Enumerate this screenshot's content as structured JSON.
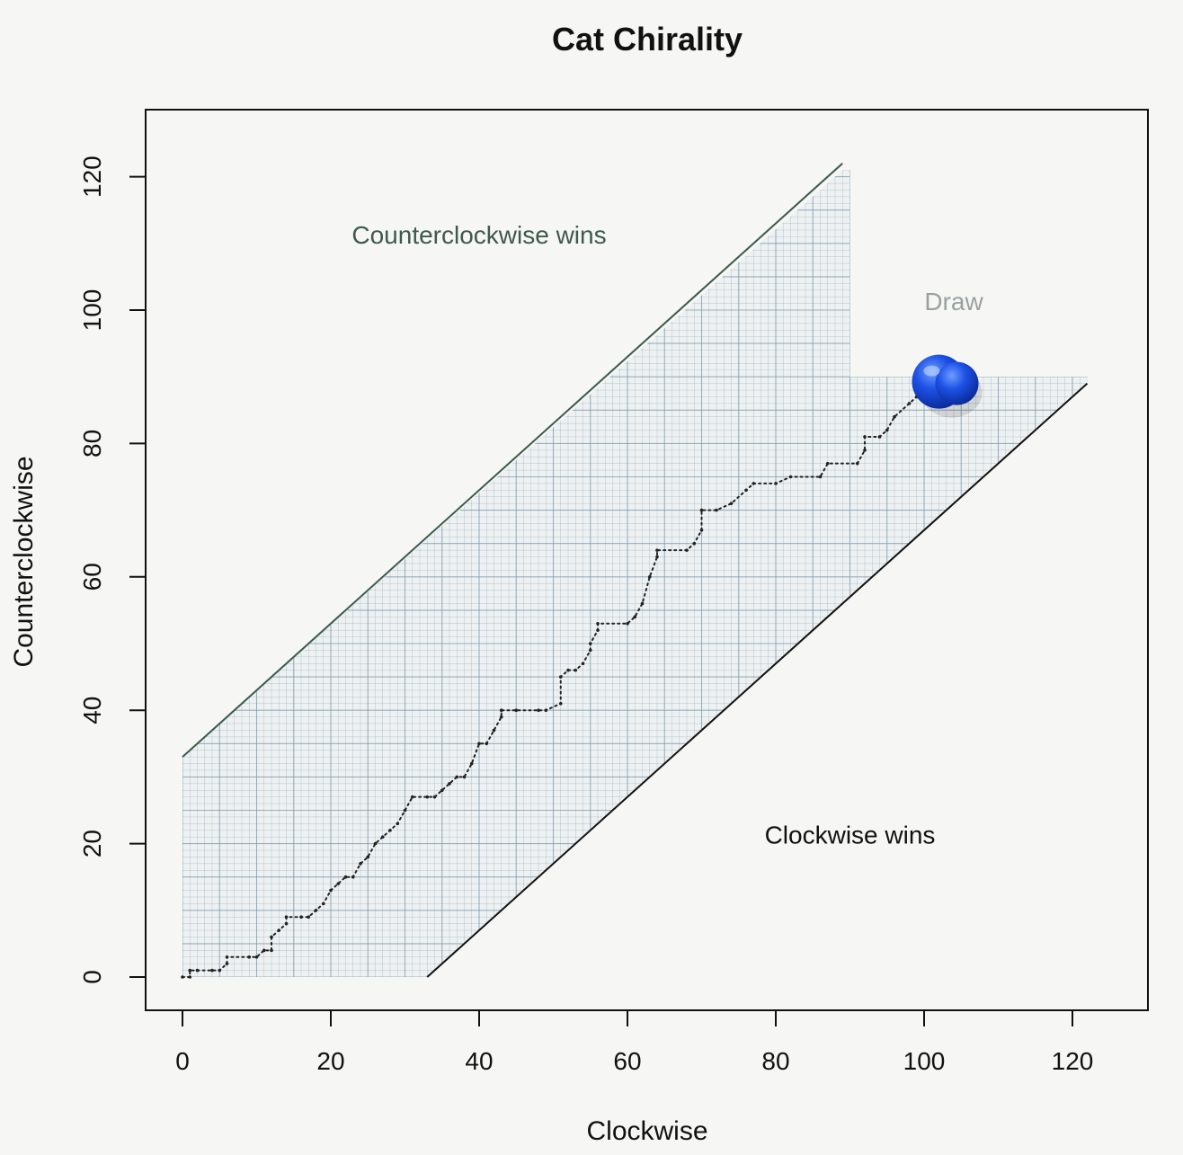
{
  "chart_data": {
    "type": "line",
    "title": "Cat Chirality",
    "xlabel": "Clockwise",
    "ylabel": "Counterclockwise",
    "xlim": [
      -5,
      130
    ],
    "ylim": [
      -5,
      130
    ],
    "x_ticks": [
      0,
      20,
      40,
      60,
      80,
      100,
      120
    ],
    "y_ticks": [
      0,
      20,
      40,
      60,
      80,
      100,
      120
    ],
    "regions": [
      {
        "name": "Counterclockwise wins",
        "label_at": [
          40,
          110
        ],
        "color": "#3f5a4a"
      },
      {
        "name": "Draw",
        "label_at": [
          104,
          100
        ],
        "color": "#9aa1a1"
      },
      {
        "name": "Clockwise wins",
        "label_at": [
          90,
          20
        ],
        "color": "#111111"
      }
    ],
    "grid_region": {
      "boundary": [
        [
          0,
          0
        ],
        [
          33,
          0
        ],
        [
          122,
          89
        ],
        [
          122,
          90
        ],
        [
          90,
          90
        ],
        [
          90,
          121
        ],
        [
          89,
          121
        ],
        [
          0,
          33
        ]
      ],
      "grid_spacing_minor": 1,
      "grid_spacing_major": 5,
      "line_color": "#7e99ac"
    },
    "boundary_lines": [
      {
        "from": [
          0,
          33
        ],
        "to": [
          89,
          122
        ]
      },
      {
        "from": [
          33,
          0
        ],
        "to": [
          122,
          89
        ]
      }
    ],
    "series": [
      {
        "values": [
          [
            0,
            0
          ],
          [
            1,
            0
          ],
          [
            1,
            1
          ],
          [
            2,
            1
          ],
          [
            4,
            1
          ],
          [
            5,
            1
          ],
          [
            6,
            2
          ],
          [
            6,
            3
          ],
          [
            9,
            3
          ],
          [
            10,
            3
          ],
          [
            11,
            4
          ],
          [
            12,
            4
          ],
          [
            12,
            6
          ],
          [
            13,
            7
          ],
          [
            14,
            8
          ],
          [
            14,
            9
          ],
          [
            16,
            9
          ],
          [
            17,
            9
          ],
          [
            18,
            10
          ],
          [
            19,
            11
          ],
          [
            20,
            13
          ],
          [
            21,
            14
          ],
          [
            22,
            15
          ],
          [
            23,
            15
          ],
          [
            24,
            17
          ],
          [
            25,
            18
          ],
          [
            26,
            20
          ],
          [
            27,
            21
          ],
          [
            28,
            22
          ],
          [
            29,
            23
          ],
          [
            30,
            25
          ],
          [
            31,
            27
          ],
          [
            33,
            27
          ],
          [
            34,
            27
          ],
          [
            35,
            28
          ],
          [
            36,
            29
          ],
          [
            37,
            30
          ],
          [
            38,
            30
          ],
          [
            39,
            32
          ],
          [
            40,
            35
          ],
          [
            41,
            35
          ],
          [
            42,
            37
          ],
          [
            43,
            39
          ],
          [
            43,
            40
          ],
          [
            45,
            40
          ],
          [
            48,
            40
          ],
          [
            49,
            40
          ],
          [
            51,
            41
          ],
          [
            51,
            45
          ],
          [
            52,
            46
          ],
          [
            53,
            46
          ],
          [
            54,
            47
          ],
          [
            55,
            49
          ],
          [
            55,
            50
          ],
          [
            56,
            52
          ],
          [
            56,
            53
          ],
          [
            60,
            53
          ],
          [
            61,
            54
          ],
          [
            62,
            56
          ],
          [
            63,
            60
          ],
          [
            64,
            63
          ],
          [
            64,
            64
          ],
          [
            68,
            64
          ],
          [
            69,
            65
          ],
          [
            70,
            67
          ],
          [
            70,
            70
          ],
          [
            72,
            70
          ],
          [
            74,
            71
          ],
          [
            76,
            73
          ],
          [
            77,
            74
          ],
          [
            80,
            74
          ],
          [
            82,
            75
          ],
          [
            86,
            75
          ],
          [
            87,
            77
          ],
          [
            91,
            77
          ],
          [
            92,
            79
          ],
          [
            92,
            81
          ],
          [
            94,
            81
          ],
          [
            95,
            82
          ],
          [
            96,
            84
          ],
          [
            98,
            86
          ],
          [
            99,
            87
          ],
          [
            100,
            88
          ]
        ],
        "color": "#222222"
      }
    ],
    "grid": true
  },
  "photo_overlay": {
    "pushpin": {
      "at": [
        102,
        89
      ],
      "color": "#1346d8"
    }
  }
}
